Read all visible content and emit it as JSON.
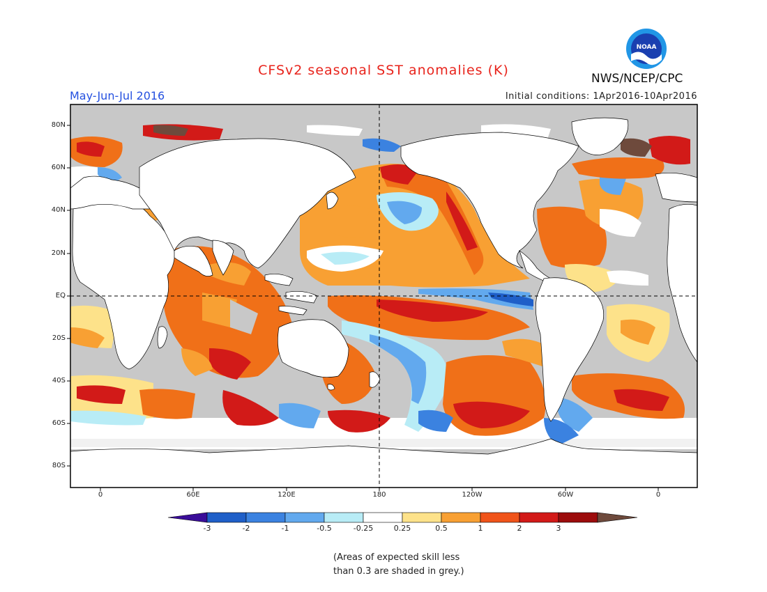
{
  "header": {
    "title": "CFSv2 seasonal SST anomalies (K)",
    "period": "May-Jun-Jul 2016",
    "initial_conditions": "Initial conditions: 1Apr2016-10Apr2016",
    "org": "NWS/NCEP/CPC",
    "logo_text": "NOAA"
  },
  "axes": {
    "lat_labels": [
      "80N",
      "60N",
      "40N",
      "20N",
      "EQ",
      "20S",
      "40S",
      "60S",
      "80S"
    ],
    "lon_labels": [
      "0",
      "60E",
      "120E",
      "180",
      "120W",
      "60W",
      "0"
    ]
  },
  "colorbar": {
    "labels": [
      "-3",
      "-2",
      "-1",
      "-0.5",
      "-0.25",
      "0.25",
      "0.5",
      "1",
      "2",
      "3"
    ],
    "colors": [
      "#3a0d99",
      "#1f5fc8",
      "#3b82e0",
      "#62a9ee",
      "#b8ecf6",
      "#ffffff",
      "#fde28a",
      "#f8a033",
      "#f0541a",
      "#d21a18",
      "#9c0c0c",
      "#6e4a3c"
    ]
  },
  "note": {
    "line1": "(Areas of expected skill less",
    "line2": "than 0.3 are shaded in grey.)"
  },
  "colors": {
    "land": "#ffffff",
    "low_skill": "#c8c8c8",
    "warm_1": "#f8a033",
    "warm_2": "#f07018",
    "warm_3": "#d21a18",
    "cool_1": "#b8ecf6",
    "cool_2": "#62a9ee",
    "cool_3": "#3b82e0",
    "light_warm": "#fde28a",
    "extreme_warm": "#6e4a3c"
  }
}
